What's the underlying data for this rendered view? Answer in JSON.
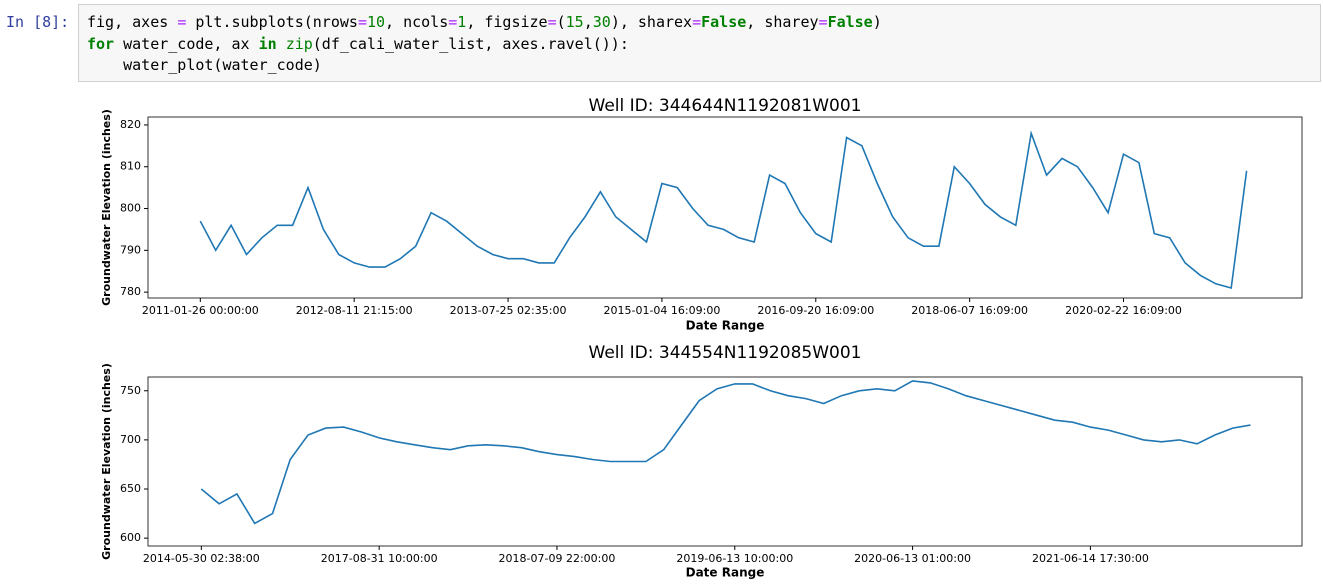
{
  "prompt": "In [8]:",
  "code": [
    [
      {
        "text": "fig, axes ",
        "color": "#000000"
      },
      {
        "text": "=",
        "color": "#aa22ff"
      },
      {
        "text": " plt.subplots(nrows",
        "color": "#000000"
      },
      {
        "text": "=",
        "color": "#aa22ff"
      },
      {
        "text": "10",
        "color": "#008000"
      },
      {
        "text": ", ncols",
        "color": "#000000"
      },
      {
        "text": "=",
        "color": "#aa22ff"
      },
      {
        "text": "1",
        "color": "#008000"
      },
      {
        "text": ", figsize",
        "color": "#000000"
      },
      {
        "text": "=",
        "color": "#aa22ff"
      },
      {
        "text": "(",
        "color": "#000000"
      },
      {
        "text": "15",
        "color": "#008000"
      },
      {
        "text": ",",
        "color": "#000000"
      },
      {
        "text": "30",
        "color": "#008000"
      },
      {
        "text": "), sharex",
        "color": "#000000"
      },
      {
        "text": "=",
        "color": "#aa22ff"
      },
      {
        "text": "False",
        "color": "#008000",
        "bold": true
      },
      {
        "text": ", sharey",
        "color": "#000000"
      },
      {
        "text": "=",
        "color": "#aa22ff"
      },
      {
        "text": "False",
        "color": "#008000",
        "bold": true
      },
      {
        "text": ")",
        "color": "#000000"
      }
    ],
    [
      {
        "text": "for",
        "color": "#008000",
        "bold": true
      },
      {
        "text": " water_code, ax ",
        "color": "#000000"
      },
      {
        "text": "in",
        "color": "#008000",
        "bold": true
      },
      {
        "text": " ",
        "color": "#000000"
      },
      {
        "text": "zip",
        "color": "#008000"
      },
      {
        "text": "(df_cali_water_list, axes.ravel()):",
        "color": "#000000"
      }
    ],
    [
      {
        "text": "    water_plot(water_code)",
        "color": "#000000"
      }
    ]
  ],
  "chart_data": [
    {
      "type": "line",
      "title": "Well ID: 344644N1192081W001",
      "xlabel": "Date Range",
      "ylabel": "Groundwater Elevation (inches)",
      "categories": [
        "2011-01-26 00:00:00",
        null,
        null,
        null,
        null,
        null,
        null,
        null,
        null,
        null,
        "2012-08-11 21:15:00",
        null,
        null,
        null,
        null,
        null,
        null,
        null,
        null,
        null,
        "2013-07-25 02:35:00",
        null,
        null,
        null,
        null,
        null,
        null,
        null,
        null,
        null,
        "2015-01-04 16:09:00",
        null,
        null,
        null,
        null,
        null,
        null,
        null,
        null,
        null,
        "2016-09-20 16:09:00",
        null,
        null,
        null,
        null,
        null,
        null,
        null,
        null,
        null,
        "2018-06-07 16:09:00",
        null,
        null,
        null,
        null,
        null,
        null,
        null,
        null,
        null,
        "2020-02-22 16:09:00",
        null,
        null,
        null,
        null,
        null,
        null,
        null,
        null
      ],
      "series": [
        {
          "name": "344644N1192081W001",
          "color": "#1f77b4",
          "values": [
            797,
            790,
            796,
            789,
            793,
            796,
            796,
            805,
            795,
            789,
            787,
            786,
            786,
            788,
            791,
            799,
            797,
            794,
            791,
            789,
            788,
            788,
            787,
            787,
            793,
            798,
            804,
            798,
            795,
            792,
            806,
            805,
            800,
            796,
            795,
            793,
            792,
            808,
            806,
            799,
            794,
            792,
            817,
            815,
            806,
            798,
            793,
            791,
            791,
            810,
            806,
            801,
            798,
            796,
            818,
            808,
            812,
            810,
            805,
            799,
            813,
            811,
            794,
            793,
            787,
            784,
            782,
            781,
            809
          ]
        }
      ],
      "ylim": [
        778.6,
        821.9
      ],
      "yticks": [
        780,
        790,
        800,
        810,
        820
      ]
    },
    {
      "type": "line",
      "title": "Well ID: 344554N1192085W001",
      "xlabel": "Date Range",
      "ylabel": "Groundwater Elevation (inches)",
      "categories": [
        "2014-05-30 02:38:00",
        null,
        null,
        null,
        null,
        null,
        null,
        null,
        null,
        null,
        "2017-08-31 10:00:00",
        null,
        null,
        null,
        null,
        null,
        null,
        null,
        null,
        null,
        "2018-07-09 22:00:00",
        null,
        null,
        null,
        null,
        null,
        null,
        null,
        null,
        null,
        "2019-06-13 10:00:00",
        null,
        null,
        null,
        null,
        null,
        null,
        null,
        null,
        null,
        "2020-06-13 01:00:00",
        null,
        null,
        null,
        null,
        null,
        null,
        null,
        null,
        null,
        "2021-06-14 17:30:00",
        null,
        null,
        null,
        null,
        null,
        null,
        null,
        null,
        null
      ],
      "series": [
        {
          "name": "344554N1192085W001",
          "color": "#1f77b4",
          "values": [
            650,
            635,
            645,
            615,
            625,
            680,
            705,
            712,
            713,
            708,
            702,
            698,
            695,
            692,
            690,
            694,
            695,
            694,
            692,
            688,
            685,
            683,
            680,
            678,
            678,
            678,
            690,
            715,
            740,
            752,
            757,
            757,
            750,
            745,
            742,
            737,
            745,
            750,
            752,
            750,
            760,
            758,
            752,
            745,
            740,
            735,
            730,
            725,
            720,
            718,
            713,
            710,
            705,
            700,
            698,
            700,
            696,
            705,
            712,
            715
          ]
        }
      ],
      "ylim": [
        592,
        764
      ],
      "yticks": [
        600,
        650,
        700,
        750
      ]
    }
  ]
}
